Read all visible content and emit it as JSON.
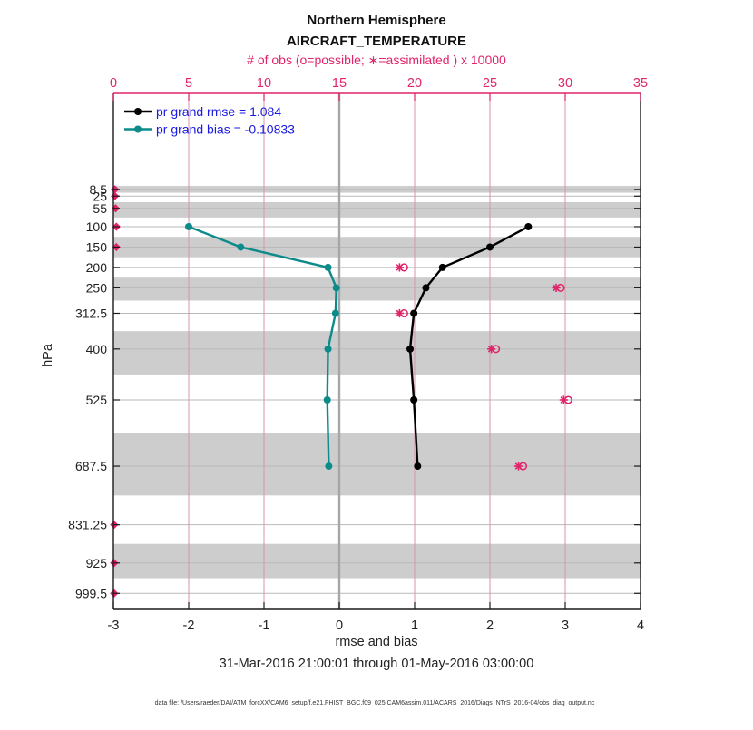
{
  "title": {
    "line1": "Northern Hemisphere",
    "line2": "AIRCRAFT_TEMPERATURE"
  },
  "top_axis": {
    "label": "# of obs (o=possible; ∗=assimilated ) x 10000",
    "tick_labels": [
      "0",
      "5",
      "10",
      "15",
      "20",
      "25",
      "30",
      "35"
    ],
    "ticks": [
      0,
      5,
      10,
      15,
      20,
      25,
      30,
      35
    ],
    "range": [
      0,
      35
    ]
  },
  "bottom_axis": {
    "label": "rmse and bias",
    "tick_labels": [
      "-3",
      "-2",
      "-1",
      "0",
      "1",
      "2",
      "3",
      "4"
    ],
    "ticks": [
      -3,
      -2,
      -1,
      0,
      1,
      2,
      3,
      4
    ],
    "range": [
      -3,
      4
    ]
  },
  "left_axis": {
    "label": "hPa",
    "tick_labels": [
      "8.5",
      "25",
      "55",
      "100",
      "150",
      "200",
      "250",
      "312.5",
      "400",
      "525",
      "687.5",
      "831.25",
      "925",
      "999.5"
    ]
  },
  "legend": [
    {
      "label": "pr grand rmse = 1.084",
      "color": "#000000",
      "series": "pr grand rmse"
    },
    {
      "label": "pr grand bias = -0.10833",
      "color": "#0d8b8b",
      "series": "pr grand bias"
    }
  ],
  "subtitle": "31-Mar-2016 21:00:01 through 01-May-2016 03:00:00",
  "footer": "data file: /Users/raeder/DAI/ATM_forcXX/CAM6_setup/f.e21.FHIST_BGC.f09_025.CAM6assim.011/ACARS_2016/Diags_NTrS_2016-04/obs_diag_output.nc",
  "colors": {
    "accent_crimson": "#e0246a",
    "teal": "#0d8b8b",
    "legend_text_blue": "#1a1ae0",
    "band_gray": "#cdcdcd",
    "grid_pink": "#d795ae",
    "grid_gray": "#b9b9b9",
    "zero_line_gray": "#a6a6a6",
    "frame_black": "#1a1a1a"
  },
  "chart_data": {
    "type": "line",
    "orientation": "vertical-pressure-profile",
    "title": "Northern Hemisphere AIRCRAFT_TEMPERATURE",
    "xlabel": "rmse and bias",
    "ylabel": "hPa",
    "x2label": "# of obs (o=possible; ∗=assimilated ) x 10000",
    "xlim": [
      -3,
      4
    ],
    "x2lim": [
      0,
      35
    ],
    "grid": true,
    "legend_position": "top-left-inside",
    "levels_hPa": [
      8.5,
      25,
      55,
      100,
      150,
      200,
      250,
      312.5,
      400,
      525,
      687.5,
      831.25,
      925,
      999.5
    ],
    "series": [
      {
        "name": "pr grand rmse",
        "summary_value": 1.084,
        "color": "#000000",
        "levels": [
          100,
          150,
          200,
          250,
          312.5,
          400,
          525,
          687.5
        ],
        "values": [
          2.51,
          2.0,
          1.37,
          1.15,
          0.99,
          0.94,
          0.99,
          1.04
        ]
      },
      {
        "name": "pr grand bias",
        "summary_value": -0.10833,
        "color": "#0d8b8b",
        "levels": [
          100,
          150,
          200,
          250,
          312.5,
          400,
          525,
          687.5
        ],
        "values": [
          -2.0,
          -1.31,
          -0.15,
          -0.04,
          -0.05,
          -0.15,
          -0.16,
          -0.14
        ]
      }
    ],
    "obs_counts_x10000": {
      "levels": [
        8.5,
        25,
        55,
        100,
        150,
        200,
        250,
        312.5,
        400,
        525,
        687.5,
        831.25,
        925,
        999.5
      ],
      "possible": [
        0.15,
        0.15,
        0.2,
        0.25,
        0.25,
        19.3,
        29.7,
        19.3,
        25.4,
        30.2,
        27.2,
        0.1,
        0.1,
        0.1
      ],
      "assimilated": [
        0.1,
        0.1,
        0.15,
        0.2,
        0.2,
        19.0,
        29.4,
        19.0,
        25.1,
        29.9,
        26.9,
        0.05,
        0.05,
        0.05
      ]
    },
    "gray_bands_hPa": [
      [
        0,
        16.75
      ],
      [
        40,
        77.5
      ],
      [
        125,
        175
      ],
      [
        225,
        281.25
      ],
      [
        356.25,
        462.5
      ],
      [
        606.25,
        759.375
      ],
      [
        878.125,
        962.25
      ]
    ]
  }
}
